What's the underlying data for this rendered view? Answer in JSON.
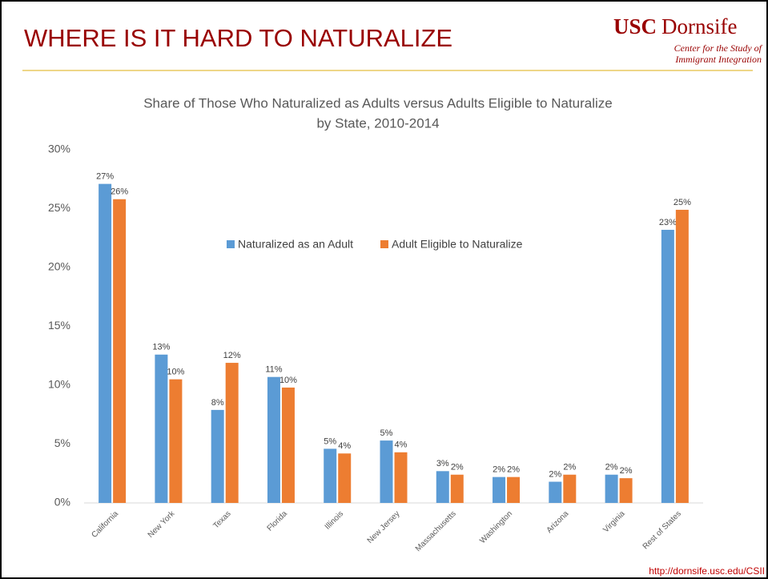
{
  "slide_title": "WHERE IS IT HARD TO NATURALIZE",
  "logo": {
    "brand": "USC",
    "school": "Dornsife",
    "lines": [
      "Center for the Study of",
      "Immigrant Integration"
    ]
  },
  "footer": "http://dornsife.usc.edu/CSII",
  "chart_data": {
    "type": "bar",
    "title": [
      "Share of Those Who Naturalized as Adults versus Adults Eligible to Naturalize",
      "by State, 2010-2014"
    ],
    "categories": [
      "California",
      "New York",
      "Texas",
      "Florida",
      "Illinois",
      "New Jersey",
      "Massachusetts",
      "Washington",
      "Arizona",
      "Virginia",
      "Rest of States"
    ],
    "series": [
      {
        "name": "Naturalized as an Adult",
        "color": "#5b9bd5",
        "values": [
          27.1,
          12.6,
          7.9,
          10.7,
          4.6,
          5.3,
          2.7,
          2.2,
          1.8,
          2.4,
          23.2
        ],
        "value_labels": [
          "27%",
          "13%",
          "8%",
          "11%",
          "5%",
          "5%",
          "3%",
          "2%",
          "2%",
          "2%",
          "23%"
        ]
      },
      {
        "name": "Adult Eligible to Naturalize",
        "color": "#ed7d31",
        "values": [
          25.8,
          10.5,
          11.9,
          9.8,
          4.2,
          4.3,
          2.4,
          2.2,
          2.4,
          2.1,
          24.9
        ],
        "value_labels": [
          "26%",
          "10%",
          "12%",
          "10%",
          "4%",
          "4%",
          "2%",
          "2%",
          "2%",
          "2%",
          "25%"
        ]
      }
    ],
    "ylim": [
      0,
      30
    ],
    "yticks": [
      {
        "value": 0,
        "label": "0%"
      },
      {
        "value": 5,
        "label": "5%"
      },
      {
        "value": 10,
        "label": "10%"
      },
      {
        "value": 15,
        "label": "15%"
      },
      {
        "value": 20,
        "label": "20%"
      },
      {
        "value": 25,
        "label": "25%"
      },
      {
        "value": 30,
        "label": "30%"
      }
    ],
    "grid": false,
    "legend": "top"
  }
}
